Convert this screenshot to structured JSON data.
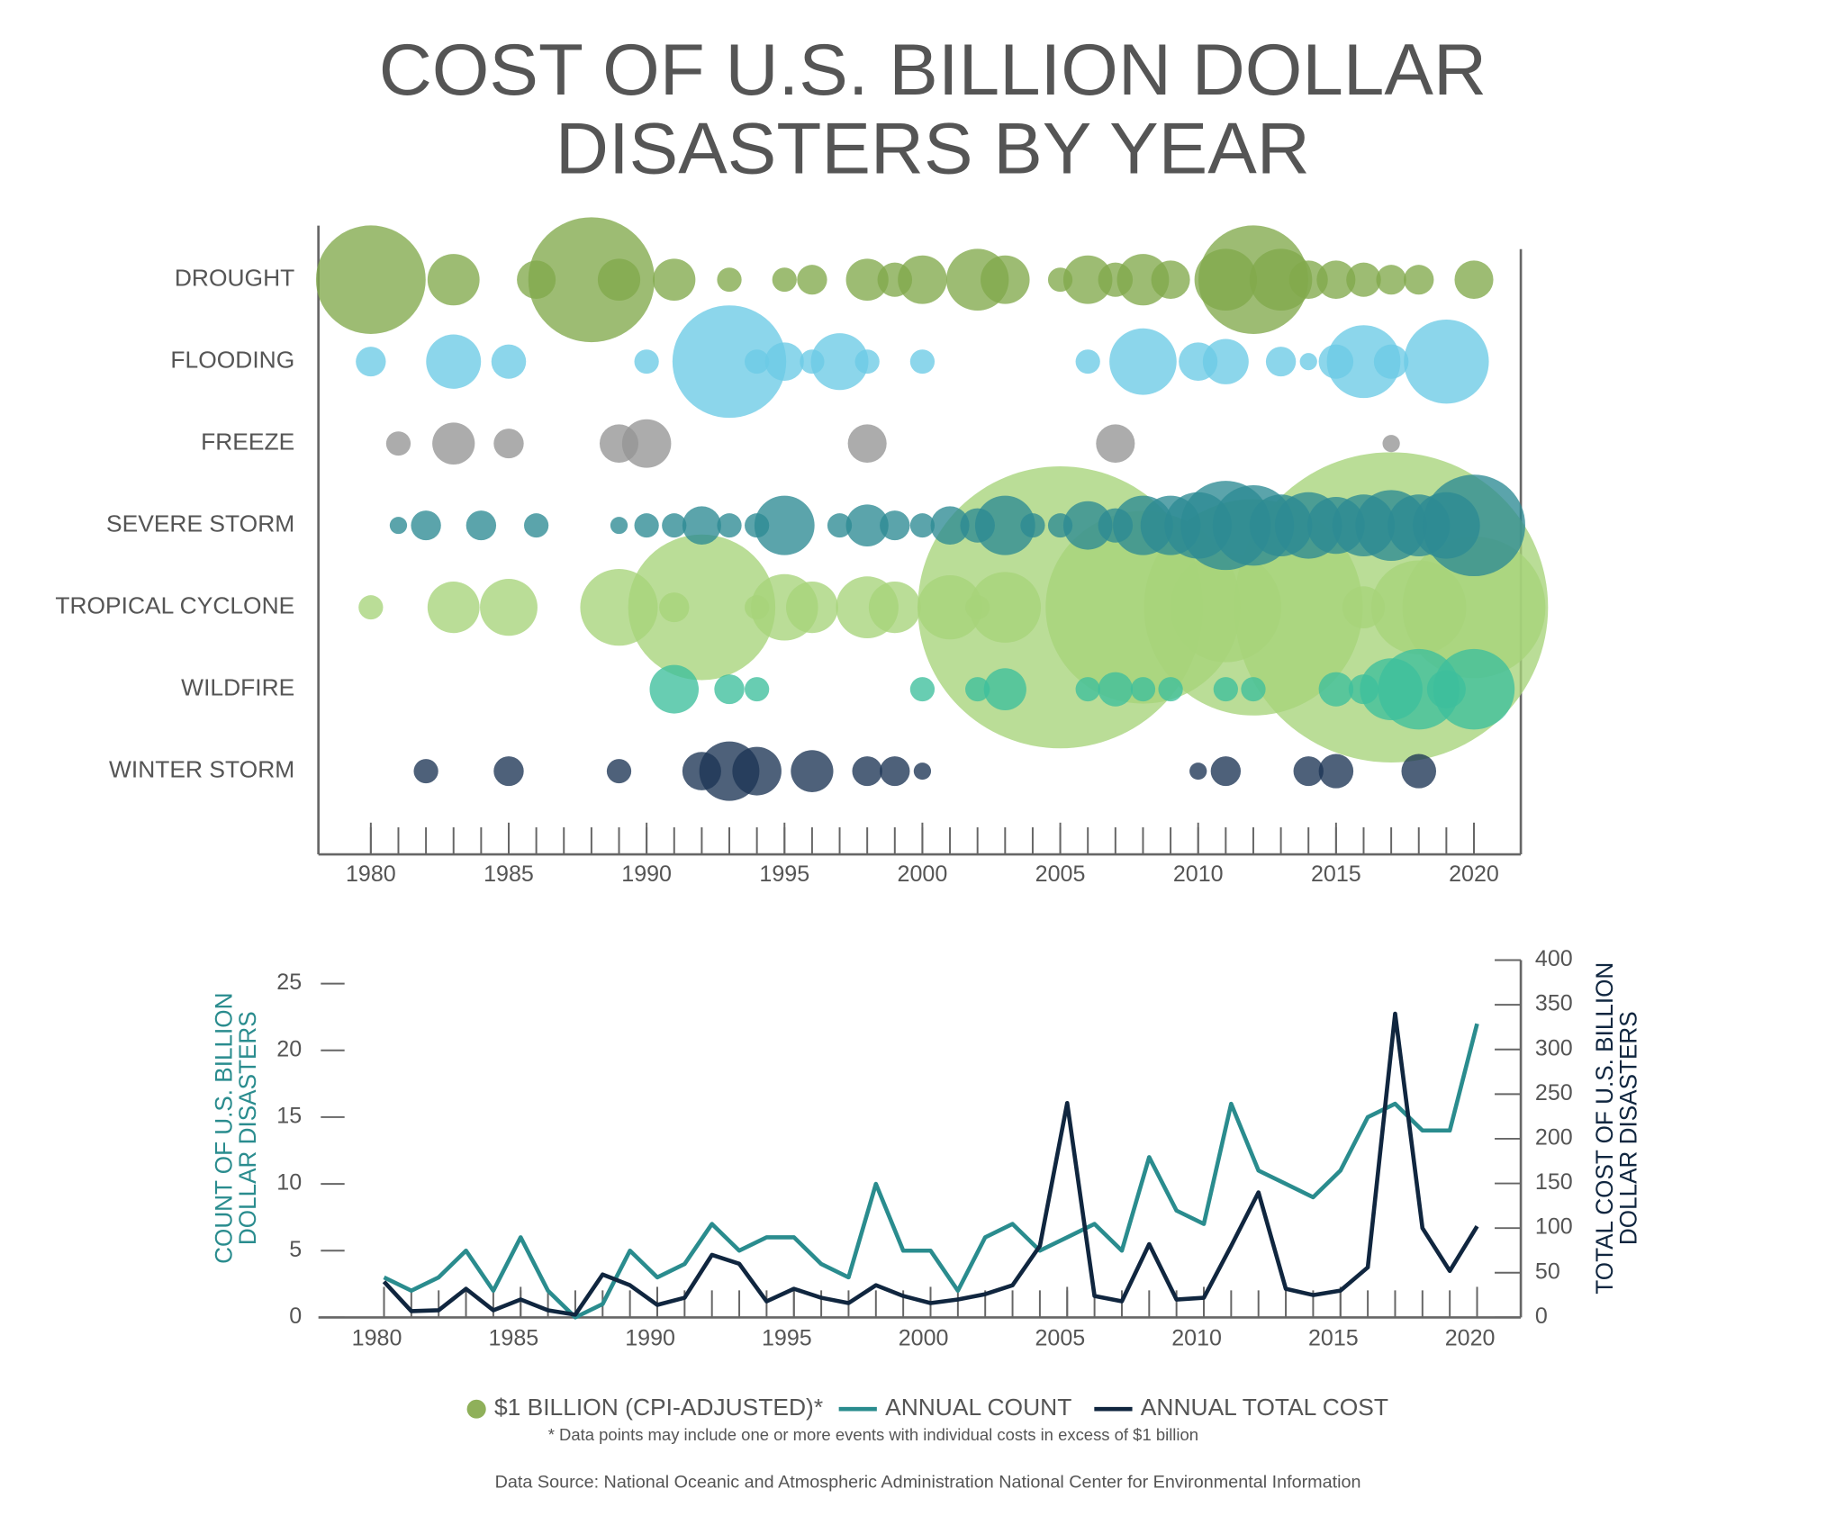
{
  "chart_data": [
    {
      "type": "bubble",
      "title": [
        "COST OF U.S. BILLION DOLLAR",
        "DISASTERS BY YEAR"
      ],
      "xlim": [
        1978.1,
        2021.7
      ],
      "xticks": [
        1980,
        1985,
        1990,
        1995,
        2000,
        2005,
        2010,
        2015,
        2020
      ],
      "xminor": [
        1980,
        1981,
        1982,
        1983,
        1984,
        1985,
        1986,
        1987,
        1988,
        1989,
        1990,
        1991,
        1992,
        1993,
        1994,
        1995,
        1996,
        1997,
        1998,
        1999,
        2000,
        2001,
        2002,
        2003,
        2004,
        2005,
        2006,
        2007,
        2008,
        2009,
        2010,
        2011,
        2012,
        2013,
        2014,
        2015,
        2016,
        2017,
        2018,
        2019,
        2020
      ],
      "size_legend": "$1 BILLION (CPI-ADJUSTED)*",
      "size_legend_color": "#8fb05a",
      "series": [
        {
          "name": "DROUGHT",
          "color": "#82a94c",
          "x": [
            1980,
            1983,
            1986,
            1988,
            1989,
            1991,
            1993,
            1995,
            1996,
            1998,
            1999,
            2000,
            2002,
            2003,
            2005,
            2006,
            2007,
            2008,
            2009,
            2011,
            2012,
            2013,
            2014,
            2015,
            2016,
            2017,
            2018,
            2020
          ],
          "values": [
            40,
            9,
            5,
            53,
            6,
            6,
            2,
            2,
            3,
            6,
            4,
            8,
            13,
            8,
            2,
            8,
            4,
            9,
            5,
            13,
            40,
            13,
            5,
            5,
            4,
            3,
            3,
            5
          ]
        },
        {
          "name": "FLOODING",
          "color": "#6ccbe6",
          "x": [
            1980,
            1983,
            1985,
            1990,
            1993,
            1994,
            1995,
            1996,
            1997,
            1998,
            2000,
            2006,
            2008,
            2010,
            2011,
            2013,
            2014,
            2015,
            2016,
            2017,
            2019
          ],
          "values": [
            3,
            10,
            4,
            2,
            43,
            2,
            5,
            2,
            11,
            2,
            2,
            2,
            15,
            5,
            7,
            3,
            1,
            4,
            18,
            4,
            24
          ]
        },
        {
          "name": "FREEZE",
          "color": "#959595",
          "x": [
            1981,
            1983,
            1985,
            1989,
            1990,
            1998,
            2007,
            2017
          ],
          "values": [
            2,
            6,
            3,
            5,
            8,
            5,
            5,
            1
          ]
        },
        {
          "name": "SEVERE STORM",
          "color": "#2d8b93",
          "x": [
            1981,
            1982,
            1984,
            1986,
            1989,
            1990,
            1991,
            1992,
            1993,
            1994,
            1995,
            1997,
            1998,
            1999,
            2000,
            2001,
            2002,
            2003,
            2004,
            2005,
            2006,
            2007,
            2008,
            2009,
            2010,
            2011,
            2012,
            2013,
            2014,
            2015,
            2016,
            2017,
            2018,
            2019,
            2020
          ],
          "values": [
            1,
            3,
            3,
            2,
            1,
            2,
            2,
            5,
            2,
            2,
            12,
            2,
            6,
            3,
            2,
            5,
            4,
            12,
            2,
            2,
            8,
            4,
            12,
            12,
            15,
            27,
            22,
            13,
            15,
            11,
            13,
            17,
            13,
            15,
            35
          ]
        },
        {
          "name": "TROPICAL CYCLONE",
          "color": "#a7d47a",
          "x": [
            1980,
            1983,
            1985,
            1989,
            1991,
            1992,
            1994,
            1995,
            1996,
            1998,
            1999,
            2001,
            2002,
            2003,
            2005,
            2008,
            2011,
            2012,
            2016,
            2017,
            2018,
            2020
          ],
          "values": [
            2,
            9,
            11,
            20,
            3,
            72,
            2,
            15,
            9,
            13,
            9,
            14,
            2,
            17,
            270,
            126,
            41,
            159,
            6,
            327,
            30,
            68
          ]
        },
        {
          "name": "WILDFIRE",
          "color": "#3dbf9c",
          "x": [
            1991,
            1993,
            1994,
            2000,
            2002,
            2003,
            2006,
            2007,
            2008,
            2009,
            2011,
            2012,
            2015,
            2016,
            2017,
            2018,
            2019,
            2020
          ],
          "values": [
            8,
            3,
            2,
            2,
            2,
            6,
            2,
            4,
            2,
            2,
            2,
            2,
            4,
            3,
            13,
            22,
            5,
            22
          ]
        },
        {
          "name": "WINTER STORM",
          "color": "#1c3454",
          "x": [
            1982,
            1985,
            1989,
            1992,
            1993,
            1994,
            1996,
            1998,
            1999,
            2000,
            2010,
            2011,
            2014,
            2015,
            2018
          ],
          "values": [
            2,
            3,
            2,
            5,
            12,
            8,
            6,
            3,
            3,
            1,
            1,
            3,
            3,
            4,
            4
          ]
        }
      ]
    },
    {
      "type": "line",
      "x": [
        1980,
        1981,
        1982,
        1983,
        1984,
        1985,
        1986,
        1987,
        1988,
        1989,
        1990,
        1991,
        1992,
        1993,
        1994,
        1995,
        1996,
        1997,
        1998,
        1999,
        2000,
        2001,
        2002,
        2003,
        2004,
        2005,
        2006,
        2007,
        2008,
        2009,
        2010,
        2011,
        2012,
        2013,
        2014,
        2015,
        2016,
        2017,
        2018,
        2019,
        2020
      ],
      "xlim": [
        1977.6,
        2021.6
      ],
      "xticks": [
        1980,
        1985,
        1990,
        1995,
        2000,
        2005,
        2010,
        2015,
        2020
      ],
      "xminor": [
        1980,
        1981,
        1982,
        1983,
        1984,
        1985,
        1986,
        1987,
        1988,
        1989,
        1990,
        1991,
        1992,
        1993,
        1994,
        1995,
        1996,
        1997,
        1998,
        1999,
        2000,
        2001,
        2002,
        2003,
        2004,
        2005,
        2006,
        2007,
        2008,
        2009,
        2010,
        2011,
        2012,
        2013,
        2014,
        2015,
        2016,
        2017,
        2018,
        2019,
        2020
      ],
      "ylim": [
        0,
        25
      ],
      "yticks": [
        0,
        5,
        10,
        15,
        20,
        25
      ],
      "y2lim": [
        0,
        400
      ],
      "y2ticks": [
        0,
        50,
        100,
        150,
        200,
        250,
        300,
        350,
        400
      ],
      "ylabel": [
        "COUNT OF U.S. BILLION",
        "DOLLAR DISASTERS"
      ],
      "y2label": [
        "TOTAL COST OF U.S. BILLION",
        "DOLLAR DISASTERS"
      ],
      "series": [
        {
          "name": "ANNUAL COUNT",
          "color": "#2a8c8e",
          "values": [
            3,
            2,
            3,
            5,
            2,
            6,
            2,
            0,
            1,
            5,
            3,
            4,
            7,
            5,
            6,
            6,
            4,
            3,
            10,
            5,
            5,
            2,
            6,
            7,
            5,
            6,
            7,
            5,
            12,
            8,
            7,
            16,
            11,
            10,
            9,
            11,
            15,
            16,
            14,
            14,
            22
          ]
        },
        {
          "name": "ANNUAL TOTAL COST",
          "color": "#10263f",
          "axis": "y2",
          "values": [
            40,
            7,
            8,
            32,
            8,
            20,
            8,
            3,
            48,
            36,
            14,
            22,
            70,
            60,
            18,
            32,
            22,
            16,
            36,
            24,
            16,
            20,
            26,
            36,
            80,
            240,
            24,
            18,
            82,
            20,
            22,
            80,
            140,
            32,
            25,
            30,
            56,
            340,
            100,
            52,
            102
          ]
        }
      ],
      "footnote": "* Data points may include one or more events with individual costs in excess of $1 billion",
      "source": "Data Source: National Oceanic and Atmospheric Administration National Center for Environmental Information"
    }
  ]
}
